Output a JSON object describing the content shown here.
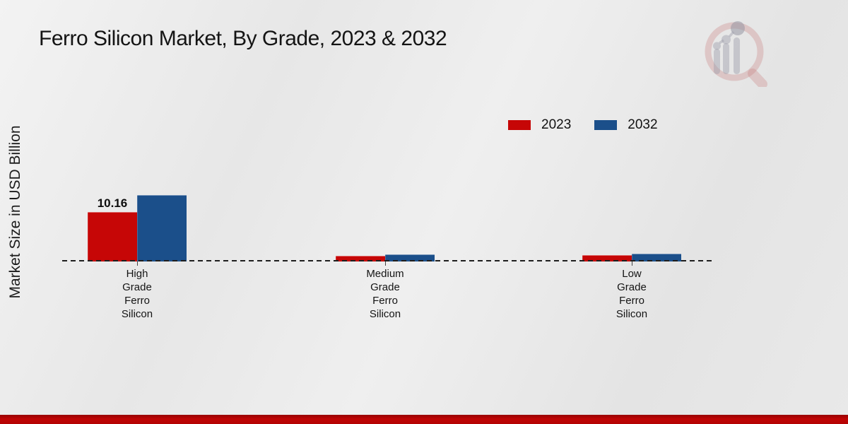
{
  "title": "Ferro Silicon Market, By Grade, 2023 & 2032",
  "y_axis_label": "Market Size in USD Billion",
  "legend": [
    {
      "label": "2023",
      "color": "#c60606"
    },
    {
      "label": "2032",
      "color": "#1b4f8a"
    }
  ],
  "chart_data": {
    "type": "bar",
    "title": "Ferro Silicon Market, By Grade, 2023 & 2032",
    "xlabel": "",
    "ylabel": "Market Size in USD Billion",
    "categories": [
      "High Grade Ferro Silicon",
      "Medium Grade Ferro Silicon",
      "Low Grade Ferro Silicon"
    ],
    "category_label_lines": [
      [
        "High",
        "Grade",
        "Ferro",
        "Silicon"
      ],
      [
        "Medium",
        "Grade",
        "Ferro",
        "Silicon"
      ],
      [
        "Low",
        "Grade",
        "Ferro",
        "Silicon"
      ]
    ],
    "series": [
      {
        "name": "2023",
        "color": "#c60606",
        "values": [
          10.16,
          1.16,
          1.27
        ]
      },
      {
        "name": "2032",
        "color": "#1b4f8a",
        "values": [
          13.64,
          1.45,
          1.65
        ]
      }
    ],
    "data_labels": [
      {
        "series": "2023",
        "category_index": 0,
        "text": "10.16"
      }
    ],
    "ylim": [
      0,
      14.5
    ],
    "grid": false,
    "legend_position": "top-right",
    "baseline_style": "dashed"
  },
  "colors": {
    "bar_2023": "#c60606",
    "bar_2032": "#1b4f8a",
    "footer_band": "#b30303",
    "background": "#e9e9e9",
    "text": "#1a1a1a"
  }
}
